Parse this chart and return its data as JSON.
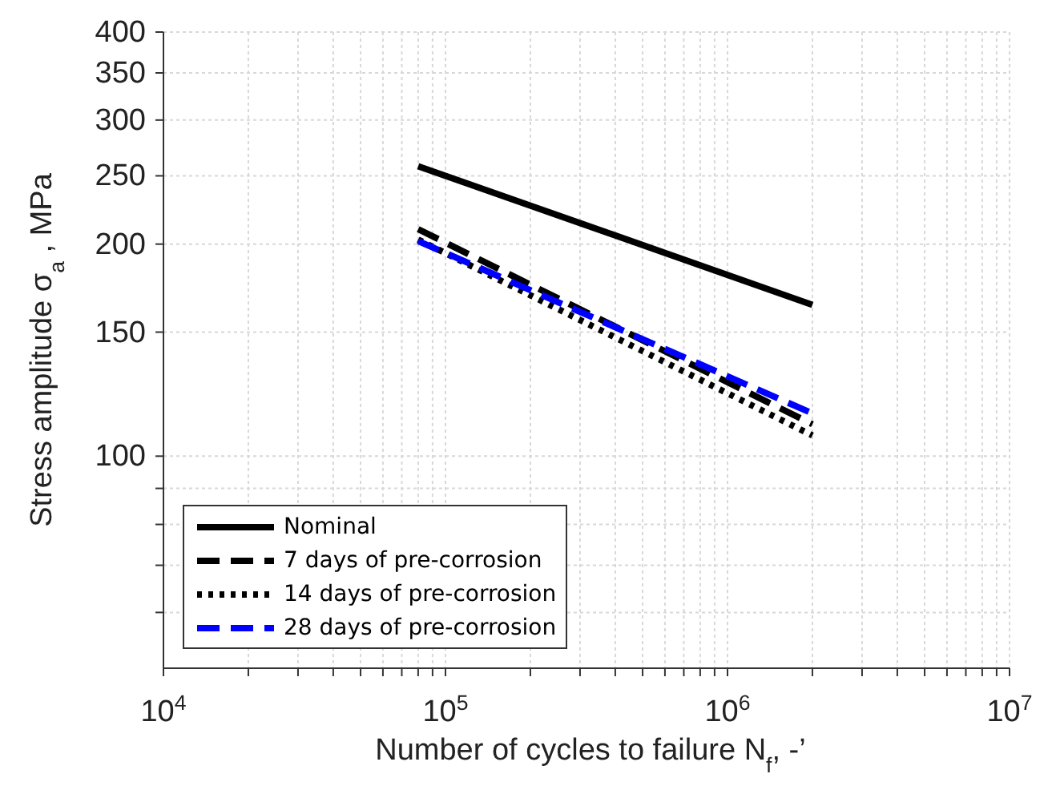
{
  "chart_data": {
    "type": "line",
    "xlabel": "Number of cycles to failure N$_{f}$, -’",
    "ylabel": "Stress amplitude σ$_{a}$ , MPa",
    "log": "xy",
    "grid": true,
    "legend": "bottom left",
    "xlim": [
      10000,
      10000000
    ],
    "ylim": [
      50,
      400
    ],
    "xticks": [
      {
        "value": 10000,
        "label": "10$^{4}$"
      },
      {
        "value": 20000,
        "label": null
      },
      {
        "value": 30000,
        "label": null
      },
      {
        "value": 40000,
        "label": null
      },
      {
        "value": 50000,
        "label": null
      },
      {
        "value": 60000,
        "label": null
      },
      {
        "value": 70000,
        "label": null
      },
      {
        "value": 80000,
        "label": null
      },
      {
        "value": 90000,
        "label": null
      },
      {
        "value": 100000,
        "label": "10$^{5}$"
      },
      {
        "value": 200000,
        "label": null
      },
      {
        "value": 300000,
        "label": null
      },
      {
        "value": 400000,
        "label": null
      },
      {
        "value": 500000,
        "label": null
      },
      {
        "value": 600000,
        "label": null
      },
      {
        "value": 700000,
        "label": null
      },
      {
        "value": 800000,
        "label": null
      },
      {
        "value": 900000,
        "label": null
      },
      {
        "value": 1000000,
        "label": "10$^{6}$"
      },
      {
        "value": 2000000,
        "label": null
      },
      {
        "value": 3000000,
        "label": null
      },
      {
        "value": 4000000,
        "label": null
      },
      {
        "value": 5000000,
        "label": null
      },
      {
        "value": 6000000,
        "label": null
      },
      {
        "value": 7000000,
        "label": null
      },
      {
        "value": 8000000,
        "label": null
      },
      {
        "value": 9000000,
        "label": null
      },
      {
        "value": 10000000,
        "label": "10$^{7}$"
      }
    ],
    "yticks": [
      {
        "value": 60,
        "label": null
      },
      {
        "value": 70,
        "label": null
      },
      {
        "value": 80,
        "label": null
      },
      {
        "value": 90,
        "label": null
      },
      100,
      150,
      200,
      250,
      300,
      350,
      400
    ],
    "x": [
      80000,
      2000000
    ],
    "series": [
      {
        "name": "Nominal",
        "color": "#000000",
        "line_style": "solid",
        "values": [
          258,
          164
        ]
      },
      {
        "name": "7 days of pre-corrosion",
        "color": "#000000",
        "line_style": "dashed",
        "values": [
          210,
          111
        ]
      },
      {
        "name": "14 days of pre-corrosion",
        "color": "#000000",
        "line_style": "dotted",
        "values": [
          203,
          107
        ]
      },
      {
        "name": "28 days of pre-corrosion",
        "color": "#0000ff",
        "line_style": "dashed",
        "values": [
          202,
          115
        ]
      }
    ]
  }
}
